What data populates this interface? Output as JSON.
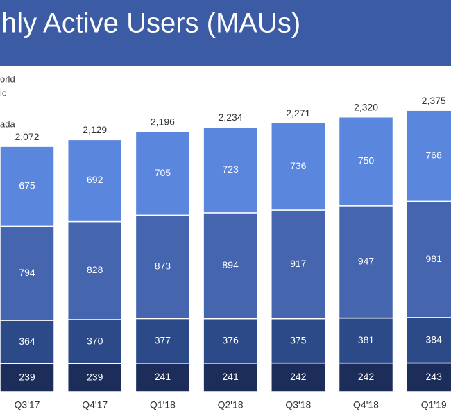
{
  "chart_data": {
    "type": "stacked_bar",
    "title": "hly Active Users (MAUs)",
    "categories": [
      "Q3'17",
      "Q4'17",
      "Q1'18",
      "Q2'18",
      "Q3'18",
      "Q4'18",
      "Q1'19"
    ],
    "series": [
      {
        "name": "ada",
        "color": "#1b2d58",
        "values": [
          239,
          239,
          241,
          241,
          242,
          242,
          243
        ]
      },
      {
        "name": null,
        "color": "#2d4a88",
        "values": [
          364,
          370,
          377,
          376,
          375,
          381,
          384
        ]
      },
      {
        "name": "ic",
        "color": "#4566ae",
        "values": [
          794,
          828,
          873,
          894,
          917,
          947,
          981
        ]
      },
      {
        "name": "orld",
        "color": "#5b86dd",
        "values": [
          675,
          692,
          705,
          723,
          736,
          750,
          768
        ]
      }
    ],
    "totals": {
      "values": [
        2072,
        2129,
        2196,
        2234,
        2271,
        2320,
        2375
      ],
      "value_labels": [
        "2,072",
        "2,129",
        "2,196",
        "2,234",
        "2,271",
        "2,320",
        "2,375"
      ]
    }
  }
}
